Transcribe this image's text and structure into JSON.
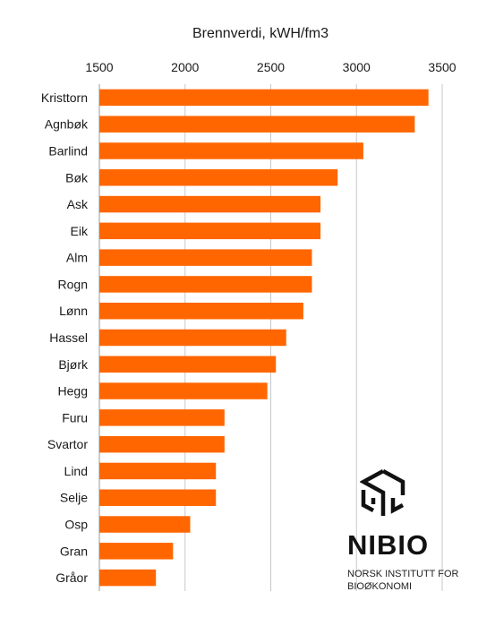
{
  "chart_data": {
    "type": "bar",
    "orientation": "horizontal",
    "title": "Brennverdi, kWH/fm3",
    "xlim": [
      1500,
      3500
    ],
    "x_ticks": [
      "1500",
      "2000",
      "2500",
      "3000",
      "3500"
    ],
    "x_tick_values": [
      1500,
      2000,
      2500,
      3000,
      3500
    ],
    "x_axis_position": "top",
    "grid": "vertical",
    "bar_color": "#ff6600",
    "categories": [
      "Kristtorn",
      "Agnbøk",
      "Barlind",
      "Bøk",
      "Ask",
      "Eik",
      "Alm",
      "Rogn",
      "Lønn",
      "Hassel",
      "Bjørk",
      "Hegg",
      "Furu",
      "Svartor",
      "Lind",
      "Selje",
      "Osp",
      "Gran",
      "Gråor"
    ],
    "values": [
      3420,
      3340,
      3040,
      2890,
      2790,
      2790,
      2740,
      2740,
      2690,
      2590,
      2530,
      2480,
      2230,
      2230,
      2180,
      2180,
      2030,
      1930,
      1830
    ]
  },
  "logo": {
    "name": "NIBIO",
    "line1": "NORSK INSTITUTT FOR",
    "line2": "BIOØKONOMI"
  }
}
